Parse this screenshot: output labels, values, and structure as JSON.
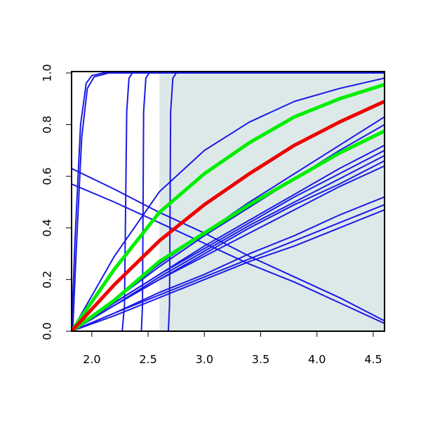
{
  "chart_data": {
    "type": "line",
    "xlim": [
      1.82,
      4.6
    ],
    "ylim": [
      0,
      1
    ],
    "xticks": [
      {
        "value": 2,
        "label": "2.0"
      },
      {
        "value": 2.5,
        "label": "2.5"
      },
      {
        "value": 3,
        "label": "3.0"
      },
      {
        "value": 3.5,
        "label": "3.5"
      },
      {
        "value": 4,
        "label": "4.0"
      },
      {
        "value": 4.5,
        "label": "4.5"
      }
    ],
    "yticks": [
      {
        "value": 0,
        "label": "0.0"
      },
      0.2,
      0.4,
      0.6,
      0.8,
      {
        "value": 1,
        "label": "1.0"
      }
    ],
    "highlight": {
      "xmin": 2.6,
      "xmax": 4.6,
      "color": "#dde9e9"
    },
    "x": [
      1.82,
      2.2,
      2.6,
      3.0,
      3.4,
      3.8,
      4.2,
      4.6
    ],
    "series": [
      {
        "color": "#1a1ae6",
        "width": 2,
        "x": [
          1.82,
          1.85,
          1.9,
          1.95,
          2.0,
          2.1,
          4.6
        ],
        "values": [
          0,
          0.35,
          0.8,
          0.96,
          0.99,
          1,
          1
        ]
      },
      {
        "color": "#1a1ae6",
        "width": 2,
        "x": [
          1.83,
          1.86,
          1.91,
          1.96,
          2.02,
          2.15,
          4.6
        ],
        "values": [
          0,
          0.3,
          0.75,
          0.94,
          0.985,
          1,
          1
        ]
      },
      {
        "color": "#1a1ae6",
        "width": 2,
        "x": [
          2.27,
          2.29,
          2.31,
          2.33,
          2.36,
          4.6
        ],
        "values": [
          0,
          0.1,
          0.85,
          0.98,
          1,
          1
        ]
      },
      {
        "color": "#1a1ae6",
        "width": 2,
        "x": [
          2.44,
          2.45,
          2.46,
          2.48,
          2.51,
          4.6
        ],
        "values": [
          0,
          0.1,
          0.85,
          0.98,
          1,
          1
        ]
      },
      {
        "color": "#1a1ae6",
        "width": 2,
        "x": [
          2.68,
          2.69,
          2.7,
          2.72,
          2.75,
          4.6
        ],
        "values": [
          0,
          0.1,
          0.85,
          0.98,
          1,
          1
        ]
      },
      {
        "color": "#1a1ae6",
        "width": 2,
        "values": [
          0,
          0.29,
          0.54,
          0.7,
          0.81,
          0.89,
          0.94,
          0.98
        ]
      },
      {
        "color": "#1a1ae6",
        "width": 2,
        "values": [
          0,
          0.12,
          0.26,
          0.38,
          0.5,
          0.61,
          0.72,
          0.83
        ]
      },
      {
        "color": "#1a1ae6",
        "width": 2,
        "values": [
          0,
          0.12,
          0.25,
          0.37,
          0.48,
          0.59,
          0.7,
          0.8
        ]
      },
      {
        "color": "#1a1ae6",
        "width": 2,
        "values": [
          0,
          0.11,
          0.22,
          0.33,
          0.43,
          0.53,
          0.63,
          0.72
        ]
      },
      {
        "color": "#1a1ae6",
        "width": 2,
        "values": [
          0,
          0.11,
          0.22,
          0.32,
          0.42,
          0.52,
          0.61,
          0.7
        ]
      },
      {
        "color": "#1a1ae6",
        "width": 2,
        "values": [
          0,
          0.1,
          0.21,
          0.31,
          0.41,
          0.5,
          0.59,
          0.68
        ]
      },
      {
        "color": "#1a1ae6",
        "width": 2,
        "values": [
          0,
          0.1,
          0.2,
          0.3,
          0.4,
          0.49,
          0.57,
          0.66
        ]
      },
      {
        "color": "#1a1ae6",
        "width": 2,
        "values": [
          0,
          0.1,
          0.2,
          0.29,
          0.38,
          0.47,
          0.56,
          0.64
        ]
      },
      {
        "color": "#1a1ae6",
        "width": 2,
        "values": [
          0,
          0.07,
          0.15,
          0.22,
          0.3,
          0.37,
          0.45,
          0.52
        ]
      },
      {
        "color": "#1a1ae6",
        "width": 2,
        "values": [
          0,
          0.07,
          0.14,
          0.21,
          0.28,
          0.35,
          0.42,
          0.49
        ]
      },
      {
        "color": "#1a1ae6",
        "width": 2,
        "values": [
          0,
          0.06,
          0.13,
          0.2,
          0.27,
          0.33,
          0.4,
          0.47
        ]
      },
      {
        "color": "#1a1ae6",
        "width": 2,
        "values": [
          0.63,
          0.55,
          0.46,
          0.38,
          0.29,
          0.21,
          0.13,
          0.04
        ]
      },
      {
        "color": "#1a1ae6",
        "width": 2,
        "values": [
          0.57,
          0.5,
          0.42,
          0.34,
          0.26,
          0.19,
          0.11,
          0.03
        ]
      },
      {
        "color": "#00ee00",
        "width": 5,
        "values": [
          0,
          0.24,
          0.46,
          0.61,
          0.73,
          0.83,
          0.9,
          0.955
        ]
      },
      {
        "color": "#00ee00",
        "width": 5,
        "values": [
          0,
          0.12,
          0.27,
          0.38,
          0.49,
          0.59,
          0.69,
          0.775
        ]
      },
      {
        "color": "#ee0000",
        "width": 5,
        "values": [
          0,
          0.18,
          0.35,
          0.49,
          0.61,
          0.72,
          0.81,
          0.89
        ]
      }
    ]
  }
}
